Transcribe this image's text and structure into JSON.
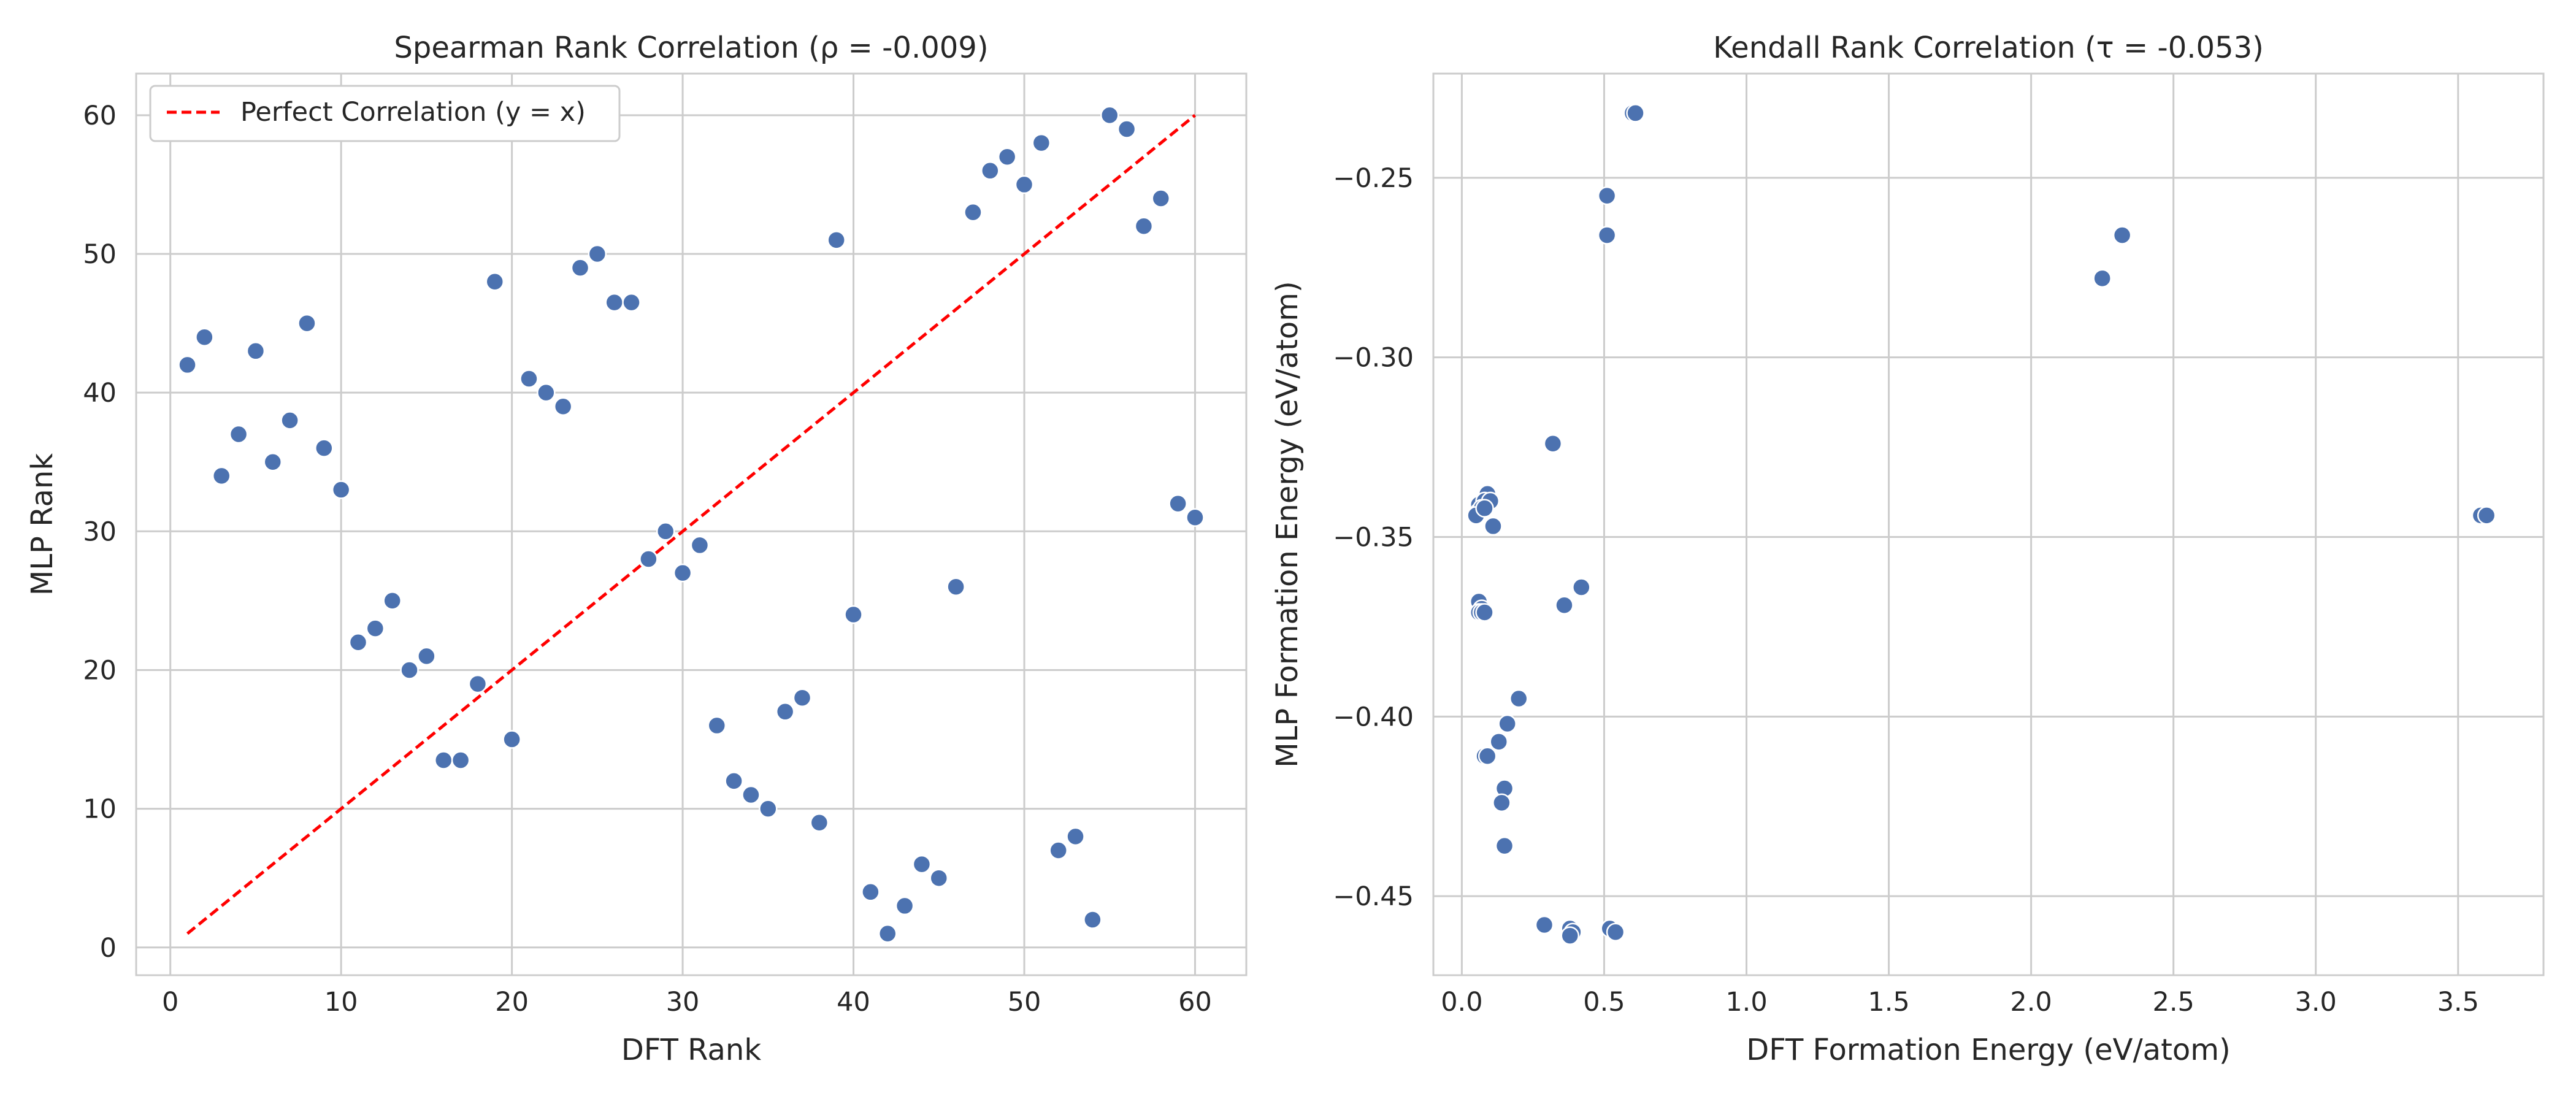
{
  "colors": {
    "points": "#4c72b0",
    "reference_line": "#ff0000",
    "grid": "#cccccc"
  },
  "chart_data": [
    {
      "type": "scatter",
      "title": "Spearman Rank Correlation (ρ = -0.009)",
      "xlabel": "DFT Rank",
      "ylabel": "MLP Rank",
      "xlim": [
        -2,
        63
      ],
      "ylim": [
        -2,
        63
      ],
      "xticks": [
        0,
        10,
        20,
        30,
        40,
        50,
        60
      ],
      "yticks": [
        0,
        10,
        20,
        30,
        40,
        50,
        60
      ],
      "grid": true,
      "legend": {
        "placement": "top-left",
        "entries": [
          "Perfect Correlation (y = x)"
        ]
      },
      "reference_line": {
        "name": "Perfect Correlation (y = x)",
        "style": "dashed",
        "x": [
          1,
          60
        ],
        "y": [
          1,
          60
        ]
      },
      "points": [
        [
          1,
          42
        ],
        [
          2,
          44
        ],
        [
          3,
          34
        ],
        [
          4,
          37
        ],
        [
          5,
          43
        ],
        [
          6,
          35
        ],
        [
          7,
          38
        ],
        [
          8,
          45
        ],
        [
          9,
          36
        ],
        [
          10,
          33
        ],
        [
          11,
          22
        ],
        [
          12,
          23
        ],
        [
          13,
          25
        ],
        [
          14,
          20
        ],
        [
          15,
          21
        ],
        [
          16,
          13.5
        ],
        [
          17,
          13.5
        ],
        [
          18,
          19
        ],
        [
          19,
          48
        ],
        [
          20,
          15
        ],
        [
          21,
          41
        ],
        [
          22,
          40
        ],
        [
          23,
          39
        ],
        [
          24,
          49
        ],
        [
          25,
          50
        ],
        [
          26,
          46.5
        ],
        [
          27,
          46.5
        ],
        [
          28,
          28
        ],
        [
          29,
          30
        ],
        [
          30,
          27
        ],
        [
          31,
          29
        ],
        [
          32,
          16
        ],
        [
          33,
          12
        ],
        [
          34,
          11
        ],
        [
          35,
          10
        ],
        [
          36,
          17
        ],
        [
          37,
          18
        ],
        [
          38,
          9
        ],
        [
          39,
          51
        ],
        [
          40,
          24
        ],
        [
          41,
          4
        ],
        [
          42,
          1
        ],
        [
          43,
          3
        ],
        [
          44,
          6
        ],
        [
          45,
          5
        ],
        [
          46,
          26
        ],
        [
          47,
          53
        ],
        [
          48,
          56
        ],
        [
          49,
          57
        ],
        [
          50,
          55
        ],
        [
          51,
          58
        ],
        [
          52,
          7
        ],
        [
          53,
          8
        ],
        [
          54,
          2
        ],
        [
          55,
          60
        ],
        [
          56,
          59
        ],
        [
          57,
          52
        ],
        [
          58,
          54
        ],
        [
          59,
          32
        ],
        [
          60,
          31
        ]
      ]
    },
    {
      "type": "scatter",
      "title": "Kendall Rank Correlation (τ = -0.053)",
      "xlabel": "DFT Formation Energy (eV/atom)",
      "ylabel": "MLP Formation Energy (eV/atom)",
      "xlim": [
        -0.1,
        3.8
      ],
      "ylim": [
        -0.472,
        -0.221
      ],
      "xticks": [
        0.0,
        0.5,
        1.0,
        1.5,
        2.0,
        2.5,
        3.0,
        3.5
      ],
      "xtick_labels": [
        "0.0",
        "0.5",
        "1.0",
        "1.5",
        "2.0",
        "2.5",
        "3.0",
        "3.5"
      ],
      "yticks": [
        -0.45,
        -0.4,
        -0.35,
        -0.3,
        -0.25
      ],
      "ytick_labels": [
        "−0.45",
        "−0.40",
        "−0.35",
        "−0.30",
        "−0.25"
      ],
      "grid": true,
      "points": [
        [
          0.6,
          -0.232
        ],
        [
          0.61,
          -0.232
        ],
        [
          0.51,
          -0.255
        ],
        [
          0.51,
          -0.266
        ],
        [
          2.25,
          -0.278
        ],
        [
          2.32,
          -0.266
        ],
        [
          0.32,
          -0.324
        ],
        [
          0.09,
          -0.338
        ],
        [
          0.06,
          -0.341
        ],
        [
          0.08,
          -0.34
        ],
        [
          0.1,
          -0.34
        ],
        [
          0.06,
          -0.343
        ],
        [
          0.07,
          -0.342
        ],
        [
          0.05,
          -0.344
        ],
        [
          0.08,
          -0.342
        ],
        [
          0.11,
          -0.347
        ],
        [
          3.58,
          -0.344
        ],
        [
          3.6,
          -0.344
        ],
        [
          0.42,
          -0.364
        ],
        [
          0.36,
          -0.369
        ],
        [
          0.06,
          -0.368
        ],
        [
          0.07,
          -0.37
        ],
        [
          0.06,
          -0.371
        ],
        [
          0.07,
          -0.371
        ],
        [
          0.08,
          -0.371
        ],
        [
          0.2,
          -0.395
        ],
        [
          0.16,
          -0.402
        ],
        [
          0.13,
          -0.407
        ],
        [
          0.08,
          -0.411
        ],
        [
          0.09,
          -0.411
        ],
        [
          0.15,
          -0.42
        ],
        [
          0.14,
          -0.424
        ],
        [
          0.15,
          -0.436
        ],
        [
          0.29,
          -0.458
        ],
        [
          0.38,
          -0.459
        ],
        [
          0.39,
          -0.46
        ],
        [
          0.38,
          -0.461
        ],
        [
          0.52,
          -0.459
        ],
        [
          0.54,
          -0.46
        ]
      ]
    }
  ]
}
